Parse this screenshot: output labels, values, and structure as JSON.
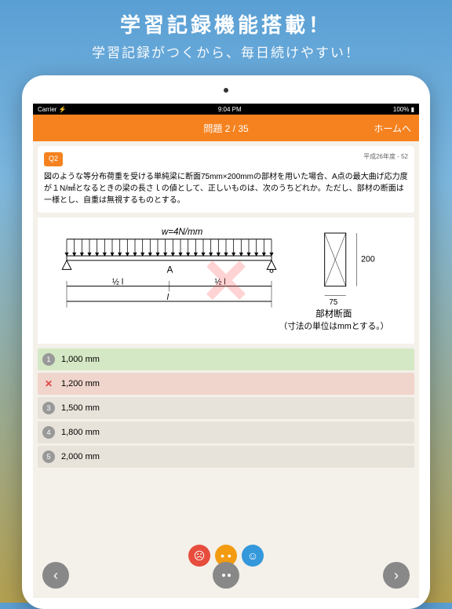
{
  "promo": {
    "title": "学習記録機能搭載！",
    "subtitle": "学習記録がつくから、毎日続けやすい！"
  },
  "status": {
    "carrier": "Carrier ⚡",
    "time": "9:04 PM",
    "battery": "100% ▮"
  },
  "appbar": {
    "left": "",
    "center": "問題 2 / 35",
    "right": "ホームへ"
  },
  "question": {
    "badge": "Q2",
    "meta": "平成26年度 - 52",
    "text": "図のような等分布荷重を受ける単純梁に断面75mm×200mmの部材を用いた場合、A点の最大曲げ応力度が１N/㎟となるときの梁の長さｌの値として、正しいものは、次のうちどれか。ただし、部材の断面は一様とし、自重は無視するものとする。"
  },
  "diagram": {
    "load_label": "w=4N/mm",
    "point_label": "A",
    "span_half1": "½ l",
    "span_half2": "½ l",
    "span_full": "l",
    "section_h": "200",
    "section_w": "75",
    "section_title": "部材断面",
    "unit_note": "（寸法の単位はmmとする。）"
  },
  "answers": [
    {
      "num": "1",
      "label": "1,000 mm",
      "state": "correct"
    },
    {
      "num": "2",
      "label": "1,200 mm",
      "state": "wrong"
    },
    {
      "num": "3",
      "label": "1,500 mm",
      "state": "normal"
    },
    {
      "num": "4",
      "label": "1,800 mm",
      "state": "normal"
    },
    {
      "num": "5",
      "label": "2,000 mm",
      "state": "normal"
    }
  ],
  "colors": {
    "accent": "#f5821f",
    "bg": "#f4f0ea",
    "correct": "#d5e8c5",
    "wrong": "#f0d5cc"
  }
}
